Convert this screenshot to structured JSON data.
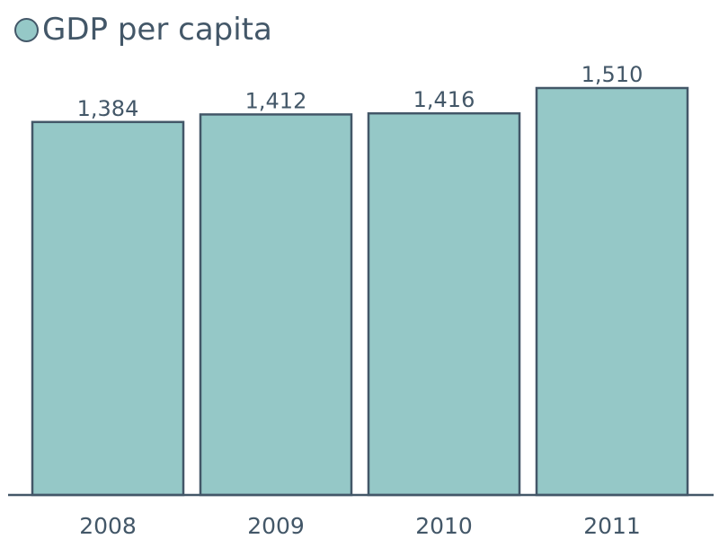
{
  "chart_data": {
    "type": "bar",
    "title": "",
    "xlabel": "",
    "ylabel": "",
    "categories": [
      "2008",
      "2009",
      "2010",
      "2011"
    ],
    "series": [
      {
        "name": "GDP per capita",
        "values": [
          1384,
          1412,
          1416,
          1510
        ],
        "labels": [
          "1,384",
          "1,412",
          "1,416",
          "1,510"
        ]
      }
    ],
    "ylim": [
      0,
      1530
    ],
    "grid": false,
    "legend": "top-left",
    "colors": {
      "bar_fill": "#95c8c7",
      "bar_stroke": "#435768",
      "text": "#435768"
    }
  }
}
